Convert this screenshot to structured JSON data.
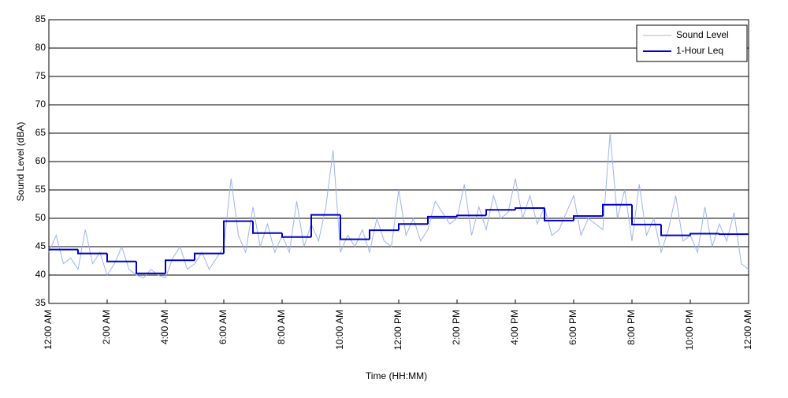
{
  "chart_data": {
    "type": "line",
    "x_label": "Time (HH:MM)",
    "y_label": "Sound Level (dBA)",
    "xlim": [
      0,
      24
    ],
    "ylim": [
      35,
      85
    ],
    "xticks": [
      {
        "value": 0,
        "label": "12:00 AM"
      },
      {
        "value": 2,
        "label": "2:00 AM"
      },
      {
        "value": 4,
        "label": "4:00 AM"
      },
      {
        "value": 6,
        "label": "6:00 AM"
      },
      {
        "value": 8,
        "label": "8:00 AM"
      },
      {
        "value": 10,
        "label": "10:00 AM"
      },
      {
        "value": 12,
        "label": "12:00 PM"
      },
      {
        "value": 14,
        "label": "2:00 PM"
      },
      {
        "value": 16,
        "label": "4:00 PM"
      },
      {
        "value": 18,
        "label": "6:00 PM"
      },
      {
        "value": 20,
        "label": "8:00 PM"
      },
      {
        "value": 22,
        "label": "10:00 PM"
      },
      {
        "value": 24,
        "label": "12:00 AM"
      }
    ],
    "yticks": [
      35,
      40,
      45,
      50,
      55,
      60,
      65,
      70,
      75,
      80,
      85
    ],
    "grid": true,
    "legend": "upper right",
    "series": [
      {
        "name": "Sound Level",
        "color": "#9db4ee",
        "style": "line",
        "x": [
          0,
          0.25,
          0.5,
          0.75,
          1,
          1.25,
          1.5,
          1.75,
          2,
          2.25,
          2.5,
          2.75,
          3,
          3.25,
          3.5,
          3.75,
          4,
          4.25,
          4.5,
          4.75,
          5,
          5.25,
          5.5,
          5.75,
          6,
          6.25,
          6.5,
          6.75,
          7,
          7.25,
          7.5,
          7.75,
          8,
          8.25,
          8.5,
          8.75,
          9,
          9.25,
          9.5,
          9.75,
          10,
          10.25,
          10.5,
          10.75,
          11,
          11.25,
          11.5,
          11.75,
          12,
          12.25,
          12.5,
          12.75,
          13,
          13.25,
          13.5,
          13.75,
          14,
          14.25,
          14.5,
          14.75,
          15,
          15.25,
          15.5,
          15.75,
          16,
          16.25,
          16.5,
          16.75,
          17,
          17.25,
          17.5,
          17.75,
          18,
          18.25,
          18.5,
          18.75,
          19,
          19.25,
          19.5,
          19.75,
          20,
          20.25,
          20.5,
          20.75,
          21,
          21.25,
          21.5,
          21.75,
          22,
          22.25,
          22.5,
          22.75,
          23,
          23.25,
          23.5,
          23.75,
          24
        ],
        "values": [
          44,
          47,
          42,
          43,
          41,
          48,
          42,
          44,
          40,
          42,
          45,
          41,
          40,
          39.5,
          41,
          40,
          39.5,
          43,
          45,
          41,
          42,
          44,
          41,
          43,
          45,
          57,
          47,
          44,
          52,
          45,
          49,
          44,
          47,
          44,
          53,
          45,
          49,
          46,
          52,
          62,
          44,
          47,
          45,
          48,
          44,
          50,
          46,
          45,
          55,
          47,
          50,
          46,
          48,
          53,
          51,
          49,
          50,
          56,
          47,
          52,
          48,
          54,
          50,
          51,
          57,
          50,
          54,
          49,
          52,
          47,
          48,
          51,
          54,
          47,
          50,
          49,
          48,
          65,
          50,
          55,
          46,
          56,
          47,
          50,
          44,
          48,
          54,
          46,
          47,
          44,
          52,
          45,
          49,
          46,
          51,
          42,
          41
        ]
      },
      {
        "name": "1-Hour Leq",
        "color": "#0000cc",
        "style": "step",
        "x": [
          0,
          1,
          2,
          3,
          4,
          5,
          6,
          7,
          8,
          9,
          10,
          11,
          12,
          13,
          14,
          15,
          16,
          17,
          18,
          19,
          20,
          21,
          22,
          23
        ],
        "values": [
          44.5,
          43.8,
          42.4,
          40.3,
          42.6,
          43.8,
          49.5,
          47.4,
          46.7,
          50.6,
          46.3,
          47.9,
          49.0,
          50.3,
          50.5,
          51.5,
          51.8,
          49.6,
          50.4,
          52.4,
          48.9,
          47.0,
          47.3,
          47.2
        ]
      }
    ]
  }
}
